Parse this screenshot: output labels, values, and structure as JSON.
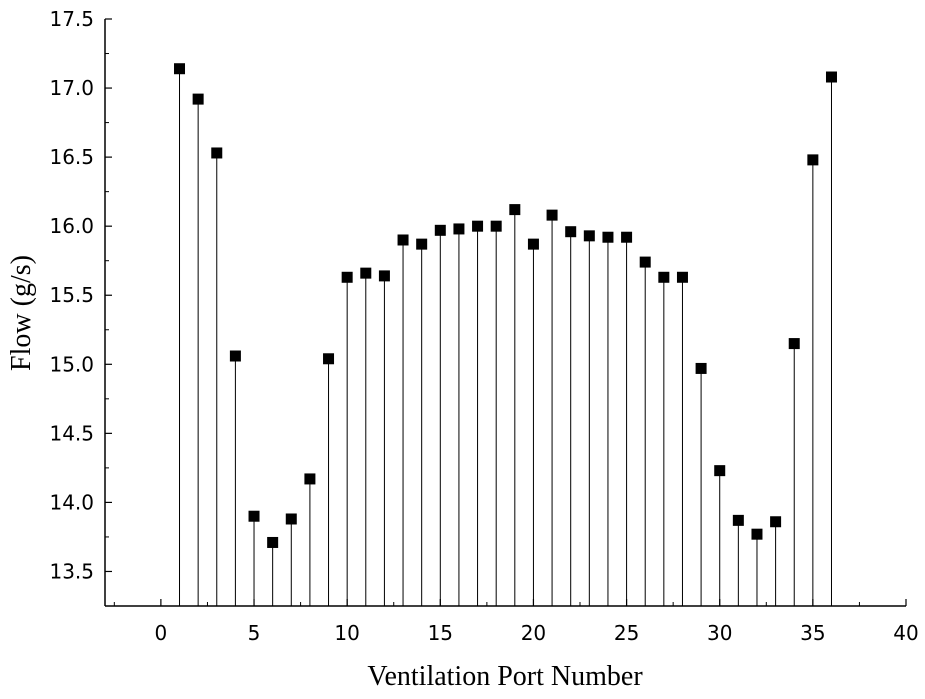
{
  "chart_data": {
    "type": "scatter",
    "style": "stem",
    "title": "",
    "xlabel": "Ventilation Port Number",
    "ylabel": "Flow (g/s)",
    "xlim": [
      -3,
      40
    ],
    "ylim": [
      13.25,
      17.5
    ],
    "x_ticks": [
      0,
      5,
      10,
      15,
      20,
      25,
      30,
      35,
      40
    ],
    "x_tick_labels": [
      "0",
      "5",
      "10",
      "15",
      "20",
      "25",
      "30",
      "35",
      "40"
    ],
    "y_ticks": [
      13.5,
      14.0,
      14.5,
      15.0,
      15.5,
      16.0,
      16.5,
      17.0,
      17.5
    ],
    "y_tick_labels": [
      "13.5",
      "14.0",
      "14.5",
      "15.0",
      "15.5",
      "16.0",
      "16.5",
      "17.0",
      "17.5"
    ],
    "grid": false,
    "marker": "square",
    "marker_color": "#000000",
    "x": [
      1,
      2,
      3,
      4,
      5,
      6,
      7,
      8,
      9,
      10,
      11,
      12,
      13,
      14,
      15,
      16,
      17,
      18,
      19,
      20,
      21,
      22,
      23,
      24,
      25,
      26,
      27,
      28,
      29,
      30,
      31,
      32,
      33,
      34,
      35,
      36
    ],
    "y": [
      17.14,
      16.92,
      16.53,
      15.06,
      13.9,
      13.71,
      13.88,
      14.17,
      15.04,
      15.63,
      15.66,
      15.64,
      15.9,
      15.87,
      15.97,
      15.98,
      16.0,
      16.0,
      16.12,
      15.87,
      16.08,
      15.96,
      15.93,
      15.92,
      15.92,
      15.74,
      15.63,
      15.63,
      14.97,
      14.23,
      13.87,
      13.77,
      13.86,
      15.15,
      16.48,
      17.08
    ]
  }
}
